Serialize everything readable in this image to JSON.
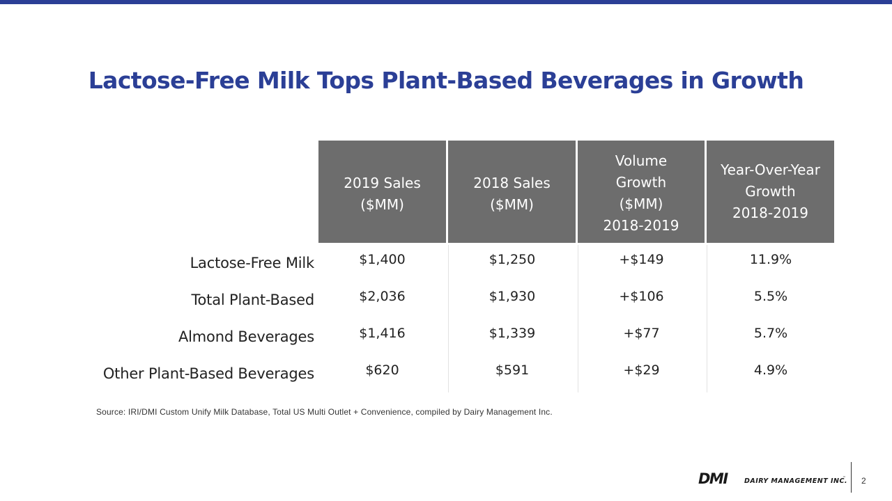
{
  "slide": {
    "title": "Lactose-Free Milk Tops Plant-Based Beverages in Growth",
    "page_number": "2",
    "source": "Source: IRI/DMI Custom Unify Milk Database, Total US Multi Outlet + Convenience,  compiled by Dairy Management Inc."
  },
  "table": {
    "headers": [
      "2019 Sales\n($MM)",
      "2018 Sales\n($MM)",
      "Volume\nGrowth\n($MM)\n2018-2019",
      "Year-Over-Year\nGrowth\n2018-2019"
    ],
    "rows": [
      {
        "label": "Lactose-Free Milk",
        "values": [
          "$1,400",
          "$1,250",
          "+$149",
          "11.9%"
        ]
      },
      {
        "label": "Total Plant-Based",
        "values": [
          "$2,036",
          "$1,930",
          "+$106",
          "5.5%"
        ]
      },
      {
        "label": "Almond Beverages",
        "values": [
          "$1,416",
          "$1,339",
          "+$77",
          "5.7%"
        ]
      },
      {
        "label": "Other Plant-Based Beverages",
        "values": [
          "$620",
          "$591",
          "+$29",
          "4.9%"
        ]
      }
    ]
  },
  "logo": {
    "mark": "DMI",
    "text": "DAIRY MANAGEMENT INC.",
    "trademark": "™"
  },
  "colors": {
    "accent": "#2b3f96",
    "header_fill": "#6d6d6d"
  }
}
